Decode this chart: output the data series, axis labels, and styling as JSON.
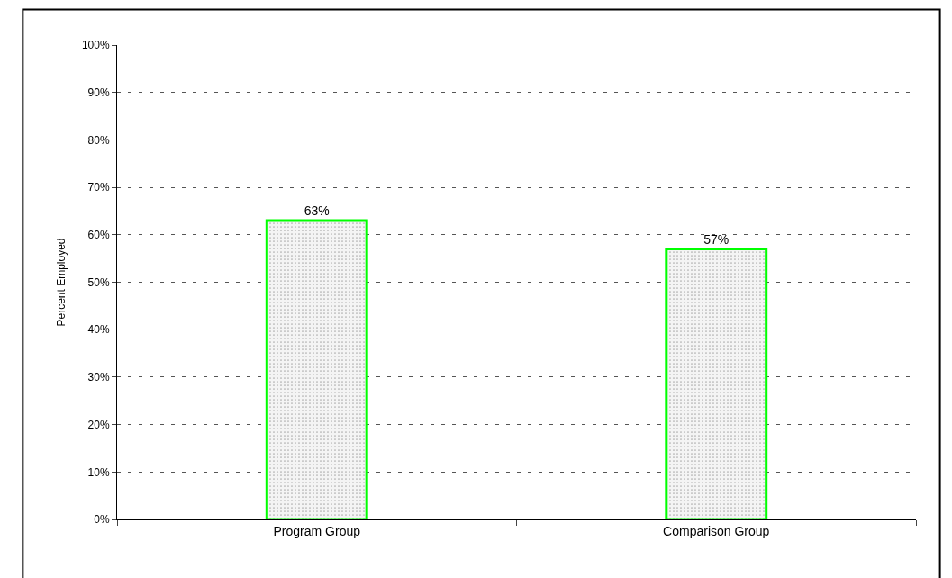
{
  "chart_data": {
    "type": "bar",
    "ylabel": "Percent Employed",
    "categories": [
      "Program Group",
      "Comparison Group"
    ],
    "values": [
      63,
      57
    ],
    "value_labels": [
      "63%",
      "57%"
    ],
    "color": "#00ff00",
    "ylim": [
      0,
      100
    ],
    "yticks": [
      {
        "value": 0,
        "label": "0%"
      },
      {
        "value": 10,
        "label": "10%"
      },
      {
        "value": 20,
        "label": "20%"
      },
      {
        "value": 30,
        "label": "30%"
      },
      {
        "value": 40,
        "label": "40%"
      },
      {
        "value": 50,
        "label": "50%"
      },
      {
        "value": 60,
        "label": "60%"
      },
      {
        "value": 70,
        "label": "70%"
      },
      {
        "value": 80,
        "label": "80%"
      },
      {
        "value": 90,
        "label": "90%"
      },
      {
        "value": 100,
        "label": "100%"
      }
    ],
    "grid": "y",
    "legend": false
  }
}
